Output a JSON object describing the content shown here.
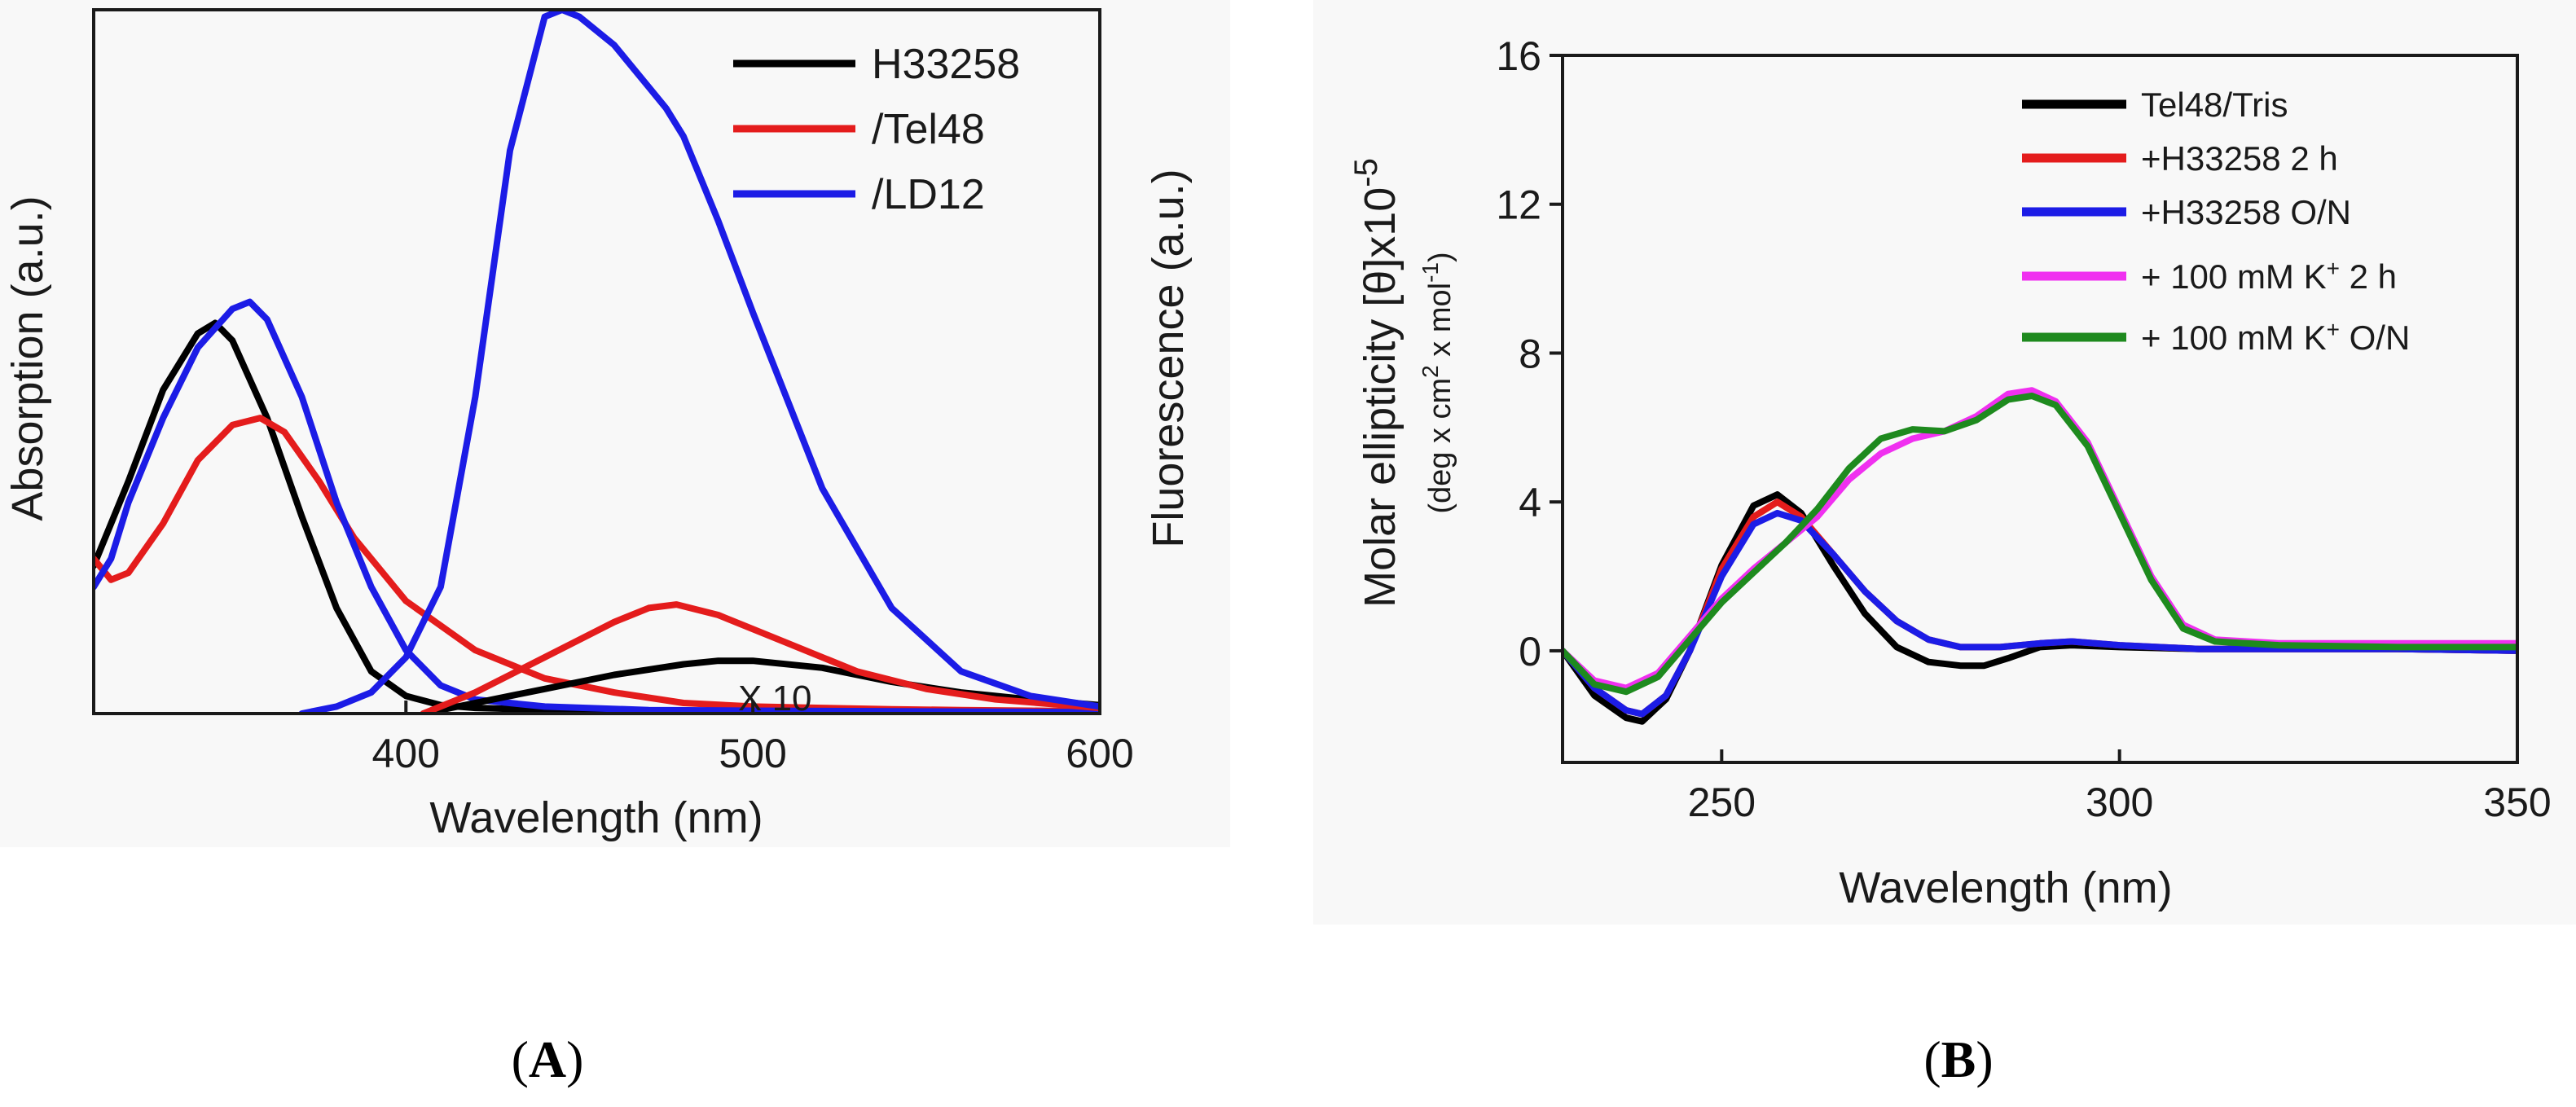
{
  "chart_data": [
    {
      "panel": "A",
      "type": "line",
      "caption_paren_open": "(",
      "caption_letter": "A",
      "caption_paren_close": ")",
      "xlabel": "Wavelength (nm)",
      "ylabel_left": "Absorption (a.u.)",
      "ylabel_right": "Fluorescence (a.u.)",
      "xlim": [
        310,
        600
      ],
      "ylim": [
        0,
        100
      ],
      "xticks": [
        400,
        500,
        600
      ],
      "annotation": "X 10",
      "legend_position": "top-right",
      "series": [
        {
          "name": "H33258",
          "color": "#000000",
          "x": [
            310,
            320,
            330,
            340,
            345,
            350,
            360,
            370,
            380,
            390,
            400,
            410,
            420,
            450,
            480,
            500,
            520,
            550,
            580,
            600
          ],
          "y": [
            21,
            33,
            46,
            54,
            55.5,
            53,
            42,
            28,
            15,
            6,
            2.5,
            1.2,
            0.8,
            0.4,
            0.3,
            0.3,
            0.3,
            0.3,
            0.3,
            0.2
          ]
        },
        {
          "name": "/Tel48",
          "color": "#e41c1c",
          "x": [
            310,
            315,
            320,
            330,
            340,
            350,
            358,
            365,
            375,
            385,
            400,
            420,
            440,
            460,
            480,
            500,
            520,
            540,
            560,
            580,
            600
          ],
          "y": [
            22,
            19,
            20,
            27,
            36,
            41,
            42,
            40,
            33,
            25,
            16,
            9,
            5,
            3,
            1.5,
            1,
            0.8,
            0.6,
            0.5,
            0.4,
            0.3
          ]
        },
        {
          "name": "/LD12",
          "color": "#1c1ce6",
          "x": [
            310,
            315,
            320,
            330,
            340,
            350,
            355,
            360,
            370,
            380,
            390,
            400,
            410,
            420,
            440,
            470,
            500,
            550,
            600
          ],
          "y": [
            18,
            22,
            30,
            42,
            52,
            57.5,
            58.5,
            56,
            45,
            30,
            18,
            9,
            4,
            2,
            1,
            0.5,
            0.4,
            0.3,
            0.2
          ]
        },
        {
          "name": "H33258 fluorescence (x10)",
          "color": "#000000",
          "x": [
            405,
            420,
            440,
            460,
            480,
            490,
            500,
            520,
            540,
            560,
            580,
            600
          ],
          "y": [
            0,
            1.5,
            3.5,
            5.5,
            7,
            7.5,
            7.5,
            6.5,
            4.5,
            3,
            2,
            1.2
          ]
        },
        {
          "name": "/Tel48 fluorescence",
          "color": "#e41c1c",
          "x": [
            405,
            420,
            440,
            460,
            470,
            478,
            490,
            510,
            530,
            550,
            570,
            590,
            600
          ],
          "y": [
            0,
            3,
            8,
            13,
            15,
            15.5,
            14,
            10,
            6,
            3.5,
            2,
            1.2,
            0.8
          ]
        },
        {
          "name": "/LD12 fluorescence",
          "color": "#1c1ce6",
          "x": [
            370,
            380,
            390,
            400,
            410,
            420,
            430,
            440,
            445,
            450,
            460,
            470,
            475,
            480,
            490,
            500,
            520,
            540,
            560,
            580,
            600
          ],
          "y": [
            0,
            1,
            3,
            8,
            18,
            45,
            80,
            99,
            100,
            99,
            95,
            89,
            86,
            82,
            70,
            57,
            32,
            15,
            6,
            2.5,
            1
          ]
        }
      ]
    },
    {
      "panel": "B",
      "type": "line",
      "caption_paren_open": "(",
      "caption_letter": "B",
      "caption_paren_close": ")",
      "xlabel": "Wavelength (nm)",
      "ylabel_main": "Molar ellipticity [θ]x10",
      "ylabel_exp": "-5",
      "ylabel_sub": "(deg x cm",
      "ylabel_sub_sup1": "2",
      "ylabel_sub_mid": " x mol",
      "ylabel_sub_sup2": "-1",
      "ylabel_sub_end": ")",
      "xlim": [
        230,
        350
      ],
      "ylim": [
        -3,
        16
      ],
      "xticks": [
        250,
        300,
        350
      ],
      "yticks": [
        0,
        4,
        8,
        12,
        16
      ],
      "legend_position": "top-right",
      "series": [
        {
          "name": "Tel48/Tris",
          "label": "Tel48/Tris",
          "color": "#000000",
          "x": [
            230,
            234,
            238,
            240,
            243,
            246,
            250,
            254,
            257,
            260,
            264,
            268,
            272,
            276,
            280,
            283,
            286,
            290,
            294,
            300,
            310,
            320,
            335,
            350
          ],
          "y": [
            0,
            -1.2,
            -1.8,
            -1.9,
            -1.3,
            0,
            2.3,
            3.9,
            4.2,
            3.7,
            2.3,
            1,
            0.1,
            -0.3,
            -0.4,
            -0.4,
            -0.2,
            0.1,
            0.15,
            0.1,
            0.05,
            0.05,
            0.05,
            0
          ]
        },
        {
          "name": "+H33258 2 h",
          "label_main": "+H33258 2 h",
          "color": "#e41c1c",
          "x": [
            230,
            234,
            238,
            240,
            243,
            246,
            250,
            254,
            257,
            260,
            264,
            268,
            272,
            276,
            280,
            285,
            290,
            294,
            300,
            310,
            320,
            335,
            350
          ],
          "y": [
            0,
            -1.0,
            -1.6,
            -1.7,
            -1.2,
            0,
            2.2,
            3.6,
            4.0,
            3.6,
            2.6,
            1.6,
            0.8,
            0.3,
            0.1,
            0.1,
            0.2,
            0.25,
            0.15,
            0.05,
            0.05,
            0.05,
            0
          ]
        },
        {
          "name": "+H33258 O/N",
          "label_main": "+H33258 O/N",
          "color": "#1c1ce6",
          "x": [
            230,
            234,
            238,
            240,
            243,
            246,
            250,
            254,
            257,
            260,
            264,
            268,
            272,
            276,
            280,
            285,
            290,
            294,
            300,
            310,
            320,
            335,
            350
          ],
          "y": [
            0,
            -1.0,
            -1.6,
            -1.7,
            -1.2,
            0,
            2.0,
            3.4,
            3.7,
            3.5,
            2.6,
            1.6,
            0.8,
            0.3,
            0.1,
            0.1,
            0.2,
            0.25,
            0.15,
            0.05,
            0.05,
            0.05,
            0
          ]
        },
        {
          "name": "+ 100 mM K+ 2 h",
          "label_main": "+ 100 mM K",
          "label_sup": "+",
          "label_end": " 2 h",
          "color": "#f030f0",
          "x": [
            230,
            234,
            238,
            242,
            246,
            250,
            254,
            258,
            262,
            266,
            270,
            274,
            278,
            282,
            286,
            289,
            292,
            296,
            300,
            304,
            308,
            312,
            320,
            335,
            350
          ],
          "y": [
            0,
            -0.8,
            -1.0,
            -0.6,
            0.4,
            1.4,
            2.2,
            2.9,
            3.6,
            4.6,
            5.3,
            5.7,
            5.9,
            6.3,
            6.9,
            7.0,
            6.7,
            5.6,
            3.8,
            2.0,
            0.7,
            0.3,
            0.2,
            0.2,
            0.2
          ]
        },
        {
          "name": "+ 100 mM K+ O/N",
          "label_main": "+ 100 mM K",
          "label_sup": "+",
          "label_end": " O/N",
          "color": "#1e8a1e",
          "x": [
            230,
            234,
            238,
            242,
            246,
            250,
            254,
            258,
            262,
            266,
            270,
            274,
            278,
            282,
            286,
            289,
            292,
            296,
            300,
            304,
            308,
            312,
            320,
            335,
            350
          ],
          "y": [
            0,
            -0.9,
            -1.1,
            -0.7,
            0.3,
            1.3,
            2.1,
            2.9,
            3.8,
            4.9,
            5.7,
            5.95,
            5.9,
            6.2,
            6.75,
            6.85,
            6.6,
            5.5,
            3.7,
            1.9,
            0.6,
            0.25,
            0.15,
            0.1,
            0.1
          ]
        }
      ]
    }
  ]
}
